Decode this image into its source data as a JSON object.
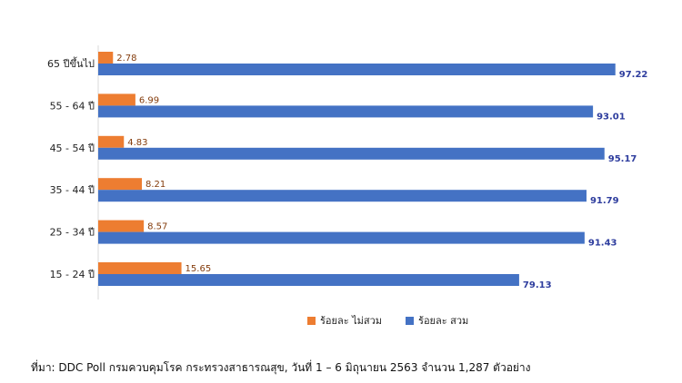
{
  "chart_data": {
    "type": "bar",
    "orientation": "horizontal",
    "categories": [
      "65 ปีขึ้นไป",
      "55 - 64 ปี",
      "45 - 54 ปี",
      "35 - 44 ปี",
      "25 - 34 ปี",
      "15 - 24 ปี"
    ],
    "series": [
      {
        "name": "ร้อยละ ไม่สวม",
        "color": "#ED7D31",
        "label_color": "#843C0C",
        "values": [
          2.78,
          6.99,
          4.83,
          8.21,
          8.57,
          15.65
        ]
      },
      {
        "name": "ร้อยละ สวม",
        "color": "#4472C4",
        "label_color": "#2E3D9E",
        "values": [
          97.22,
          93.01,
          95.17,
          91.79,
          91.43,
          79.13
        ]
      }
    ],
    "xlim": [
      0,
      100
    ],
    "grid": false,
    "legend_position": "bottom"
  },
  "source_note": "ที่มา: DDC Poll กรมควบคุมโรค กระทรวงสาธารณสุข, วันที่ 1 – 6 มิถุนายน 2563 จำนวน 1,287 ตัวอย่าง"
}
